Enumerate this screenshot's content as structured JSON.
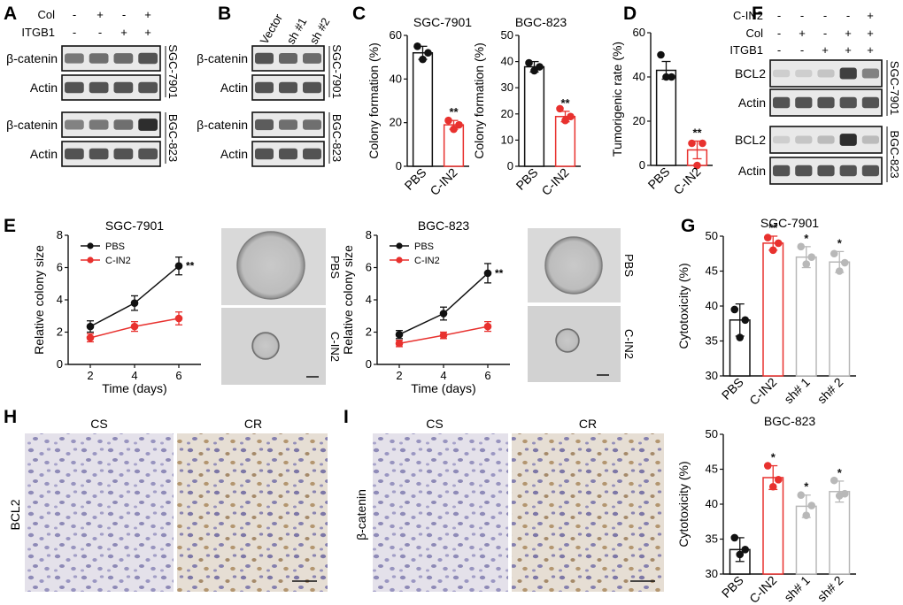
{
  "colors": {
    "control": "#111111",
    "treatment": "#e8312e",
    "knockdown": "#b8b8b8",
    "micro_bg": "#d6d6d6",
    "ihc_bg": "#e3e0e8"
  },
  "panels": {
    "A": {
      "letter": "A",
      "row_labels": [
        "Col",
        "ITGB1"
      ],
      "marks": [
        [
          "-",
          "+",
          "-",
          "+"
        ],
        [
          "-",
          "-",
          "+",
          "+"
        ]
      ],
      "blots": [
        {
          "name": "β-catenin",
          "cell": "SGC-7901",
          "intensity": [
            0.55,
            0.6,
            0.62,
            0.75
          ]
        },
        {
          "name": "Actin",
          "cell": "",
          "intensity": [
            0.75,
            0.75,
            0.75,
            0.75
          ]
        },
        {
          "name": "β-catenin",
          "cell": "BGC-823",
          "intensity": [
            0.5,
            0.55,
            0.6,
            0.95
          ]
        },
        {
          "name": "Actin",
          "cell": "",
          "intensity": [
            0.75,
            0.75,
            0.75,
            0.75
          ]
        }
      ]
    },
    "B": {
      "letter": "B",
      "lanes": [
        "Vector",
        "sh #1",
        "sh #2"
      ],
      "blots": [
        {
          "name": "β-catenin",
          "cell": "SGC-7901",
          "intensity": [
            0.75,
            0.65,
            0.62
          ]
        },
        {
          "name": "Actin",
          "cell": "",
          "intensity": [
            0.75,
            0.75,
            0.75
          ]
        },
        {
          "name": "β-catenin",
          "cell": "BGC-823",
          "intensity": [
            0.7,
            0.6,
            0.6
          ]
        },
        {
          "name": "Actin",
          "cell": "",
          "intensity": [
            0.75,
            0.75,
            0.75
          ]
        }
      ]
    },
    "C": {
      "letter": "C"
    },
    "D": {
      "letter": "D"
    },
    "E": {
      "letter": "E",
      "micro_labels": [
        "PBS",
        "C-IN2",
        "PBS",
        "C-IN2"
      ]
    },
    "F": {
      "letter": "F",
      "row_labels": [
        "C-IN2",
        "Col",
        "ITGB1"
      ],
      "marks": [
        [
          "-",
          "-",
          "-",
          "-",
          "+"
        ],
        [
          "-",
          "+",
          "-",
          "+",
          "+"
        ],
        [
          "-",
          "-",
          "+",
          "+",
          "+"
        ]
      ],
      "blots": [
        {
          "name": "BCL2",
          "cell": "SGC-7901",
          "intensity": [
            0.1,
            0.1,
            0.15,
            0.85,
            0.5
          ]
        },
        {
          "name": "Actin",
          "cell": "",
          "intensity": [
            0.75,
            0.75,
            0.75,
            0.75,
            0.75
          ]
        },
        {
          "name": "BCL2",
          "cell": "BGC-823",
          "intensity": [
            0.1,
            0.15,
            0.2,
            0.95,
            0.2
          ]
        },
        {
          "name": "Actin",
          "cell": "",
          "intensity": [
            0.75,
            0.75,
            0.75,
            0.75,
            0.75
          ]
        }
      ]
    },
    "G": {
      "letter": "G"
    },
    "H": {
      "letter": "H",
      "col_labels": [
        "CS",
        "CR"
      ],
      "row_label": "BCL2"
    },
    "I": {
      "letter": "I",
      "col_labels": [
        "CS",
        "CR"
      ],
      "row_label": "β-catenin"
    }
  },
  "chart_data": [
    {
      "id": "C1",
      "type": "bar",
      "title": "SGC-7901",
      "ylabel": "Colony formation (%)",
      "categories": [
        "PBS",
        "C-IN2"
      ],
      "values": [
        52,
        19
      ],
      "errors": [
        3,
        2
      ],
      "points": [
        [
          55,
          52,
          49
        ],
        [
          21,
          19,
          17
        ]
      ],
      "ylim": [
        0,
        60
      ],
      "yticks": [
        0,
        20,
        40,
        60
      ],
      "significance": [
        "",
        "**"
      ]
    },
    {
      "id": "C2",
      "type": "bar",
      "title": "BGC-823",
      "ylabel": "Colony formation (%)",
      "categories": [
        "PBS",
        "C-IN2"
      ],
      "values": [
        38,
        19
      ],
      "errors": [
        2,
        2
      ],
      "points": [
        [
          39.5,
          38,
          36.5
        ],
        [
          22,
          19,
          17.5
        ]
      ],
      "ylim": [
        0,
        50
      ],
      "yticks": [
        0,
        10,
        20,
        30,
        40,
        50
      ],
      "significance": [
        "",
        "**"
      ]
    },
    {
      "id": "D",
      "type": "bar",
      "title": "",
      "ylabel": "Tumorigenic rate (%)",
      "categories": [
        "PBS",
        "C-IN2"
      ],
      "values": [
        43,
        7
      ],
      "errors": [
        4,
        4
      ],
      "points": [
        [
          50,
          40,
          40
        ],
        [
          10,
          10,
          0
        ]
      ],
      "ylim": [
        0,
        60
      ],
      "yticks": [
        0,
        20,
        40,
        60
      ],
      "significance": [
        "",
        "**"
      ]
    },
    {
      "id": "E1",
      "type": "line",
      "title": "SGC-7901",
      "xlabel": "Time (days)",
      "ylabel": "Relative colony size",
      "x": [
        2,
        4,
        6
      ],
      "xticks": [
        2,
        4,
        6
      ],
      "ylim": [
        0,
        8
      ],
      "yticks": [
        0,
        2,
        4,
        6,
        8
      ],
      "series": [
        {
          "name": "PBS",
          "values": [
            2.35,
            3.8,
            6.1
          ],
          "errors": [
            0.35,
            0.45,
            0.55
          ]
        },
        {
          "name": "C-IN2",
          "values": [
            1.65,
            2.35,
            2.85
          ],
          "errors": [
            0.25,
            0.3,
            0.4
          ]
        }
      ],
      "significance": "**",
      "legend": "top-left"
    },
    {
      "id": "E2",
      "type": "line",
      "title": "BGC-823",
      "xlabel": "Time (days)",
      "ylabel": "Relative colony size",
      "x": [
        2,
        4,
        6
      ],
      "xticks": [
        2,
        4,
        6
      ],
      "ylim": [
        0,
        8
      ],
      "yticks": [
        0,
        2,
        4,
        6,
        8
      ],
      "series": [
        {
          "name": "PBS",
          "values": [
            1.85,
            3.15,
            5.65
          ],
          "errors": [
            0.25,
            0.4,
            0.6
          ]
        },
        {
          "name": "C-IN2",
          "values": [
            1.3,
            1.8,
            2.35
          ],
          "errors": [
            0.2,
            0.2,
            0.3
          ]
        }
      ],
      "significance": "**",
      "legend": "top-left"
    },
    {
      "id": "G1",
      "type": "bar",
      "title": "SGC-7901",
      "ylabel": "Cytotoxicity (%)",
      "categories": [
        "PBS",
        "C-IN2",
        "sh# 1",
        "sh# 2"
      ],
      "values": [
        38,
        49,
        47,
        46.3
      ],
      "errors": [
        2.3,
        1,
        1.5,
        1.5
      ],
      "points": [
        [
          39.5,
          38,
          35.5
        ],
        [
          49.8,
          49,
          48
        ],
        [
          48.5,
          47,
          46
        ],
        [
          47.5,
          46.2,
          45
        ]
      ],
      "ylim": [
        30,
        50
      ],
      "yticks": [
        30,
        35,
        40,
        45,
        50
      ],
      "significance": [
        "",
        "**",
        "*",
        "*"
      ]
    },
    {
      "id": "G2",
      "type": "bar",
      "title": "BGC-823",
      "ylabel": "Cytotoxicity (%)",
      "categories": [
        "PBS",
        "C-IN2",
        "sh# 1",
        "sh# 2"
      ],
      "values": [
        33.5,
        43.8,
        39.7,
        41.8
      ],
      "errors": [
        1.7,
        1.7,
        1.6,
        1.5
      ],
      "points": [
        [
          35.2,
          33.5,
          32.8
        ],
        [
          45.5,
          43.5,
          42.5
        ],
        [
          41.3,
          39.8,
          38.4
        ],
        [
          43.4,
          41.5,
          41.2
        ]
      ],
      "ylim": [
        30,
        50
      ],
      "yticks": [
        30,
        35,
        40,
        45,
        50
      ],
      "significance": [
        "",
        "*",
        "*",
        "*"
      ]
    }
  ]
}
